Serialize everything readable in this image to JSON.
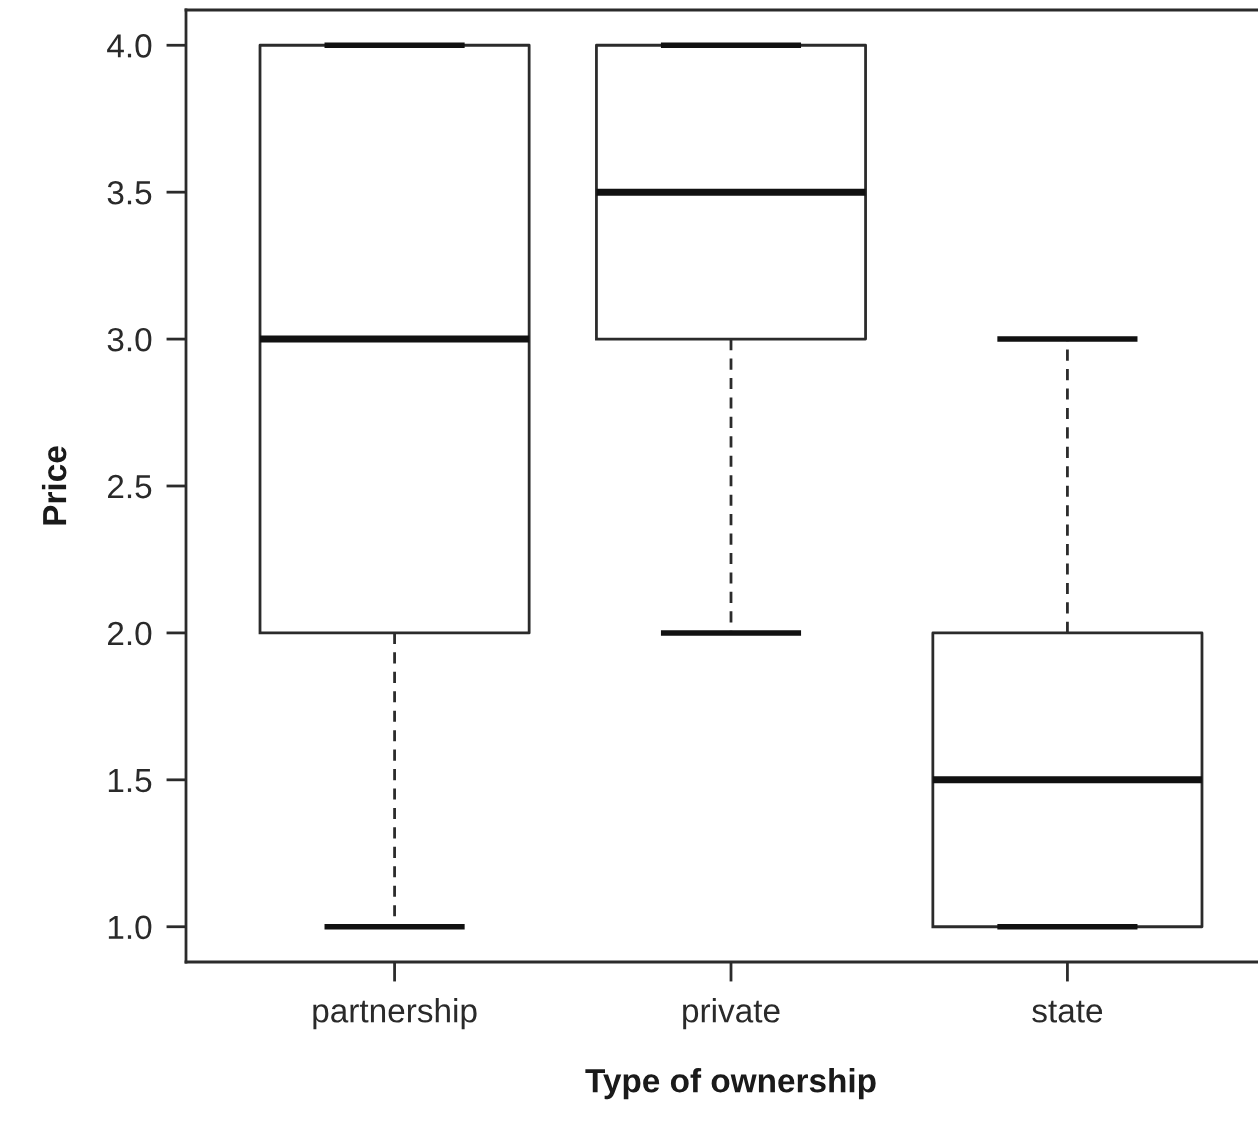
{
  "chart_data": {
    "type": "box",
    "xlabel": "Type of ownership",
    "ylabel": "Price",
    "categories": [
      "partnership",
      "private",
      "state"
    ],
    "boxes": [
      {
        "low": 1,
        "q1": 2,
        "median": 3,
        "q3": 4,
        "high": 4
      },
      {
        "low": 2,
        "q1": 3,
        "median": 3.5,
        "q3": 4,
        "high": 4
      },
      {
        "low": 1,
        "q1": 1,
        "median": 1.5,
        "q3": 2,
        "high": 3
      }
    ],
    "ylim": [
      0.88,
      4.12
    ],
    "yticks": [
      {
        "value": 1,
        "label": "1.0"
      },
      {
        "value": 1.5,
        "label": "1.5"
      },
      {
        "value": 2,
        "label": "2.0"
      },
      {
        "value": 2.5,
        "label": "2.5"
      },
      {
        "value": 3,
        "label": "3.0"
      },
      {
        "value": 3.5,
        "label": "3.5"
      },
      {
        "value": 4,
        "label": "4.0"
      }
    ]
  }
}
